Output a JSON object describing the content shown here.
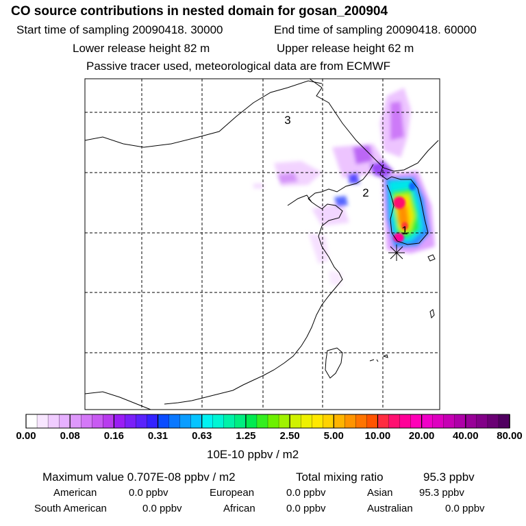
{
  "title": "CO  source contributions in nested domain for gosan_200904",
  "start_label": "Start time of sampling 20090418. 30000",
  "end_label": "End time of sampling 20090418. 60000",
  "lower_height": "Lower release height   82 m",
  "upper_height": "Upper release height   62 m",
  "tracer_note": "Passive tracer used, meteorological data are from ECMWF",
  "map": {
    "region_labels": [
      "1",
      "2",
      "3"
    ],
    "receptor": "gosan",
    "colors": {
      "land_line": "#000000",
      "grid_line": "#000000"
    }
  },
  "colorbar": {
    "tick_labels": [
      "0.00",
      "0.08",
      "0.16",
      "0.31",
      "0.63",
      "1.25",
      "2.50",
      "5.00",
      "10.00",
      "20.00",
      "40.00",
      "80.00"
    ],
    "colors": [
      "#ffffff",
      "#f8e6ff",
      "#f0ccff",
      "#e6b0ff",
      "#de98fb",
      "#d478f7",
      "#c85af2",
      "#b83bee",
      "#9a1df4",
      "#7a20f8",
      "#5a22fc",
      "#3322ff",
      "#0a4cff",
      "#0a78ff",
      "#0a9dff",
      "#06c4ff",
      "#00f2f2",
      "#00f5d4",
      "#00f2a8",
      "#00ee80",
      "#00ea50",
      "#34ee20",
      "#6cf000",
      "#a0f200",
      "#d0f200",
      "#eef000",
      "#ffe800",
      "#ffd200",
      "#ffb400",
      "#ff9400",
      "#ff7400",
      "#ff5400",
      "#ff2c40",
      "#ff1070",
      "#ff0098",
      "#ff00b8",
      "#f000c8",
      "#de00c0",
      "#c600b4",
      "#ae00a8",
      "#980098",
      "#820088",
      "#6a0074",
      "#500060"
    ],
    "units": "10E-10 ppbv / m2"
  },
  "stats": {
    "max_label": "Maximum value  0.707E-08 ppbv / m2",
    "total_label": "Total mixing ratio",
    "total_value": "95.3 ppbv"
  },
  "regions": [
    {
      "name": "American",
      "value": "0.0 ppbv"
    },
    {
      "name": "European",
      "value": "0.0 ppbv"
    },
    {
      "name": "Asian",
      "value": "95.3 ppbv"
    },
    {
      "name": "South American",
      "value": "0.0 ppbv"
    },
    {
      "name": "African",
      "value": "0.0 ppbv"
    },
    {
      "name": "Australian",
      "value": "0.0 ppbv"
    }
  ]
}
